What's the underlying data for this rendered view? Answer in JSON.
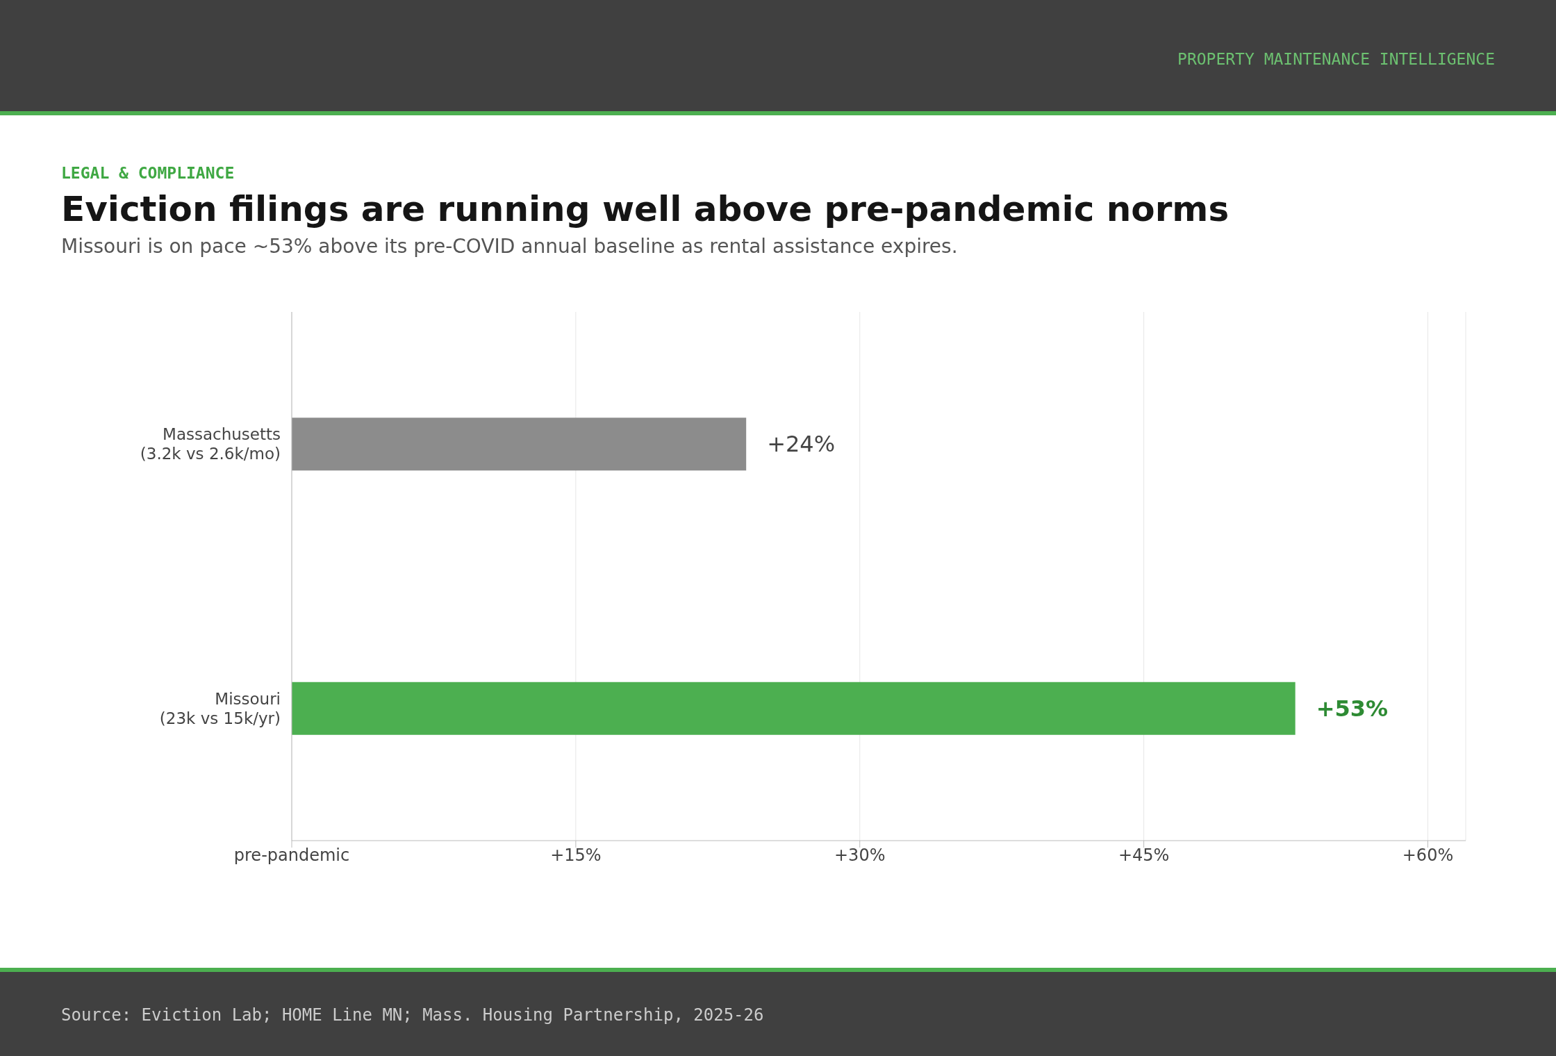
{
  "chart_data": {
    "type": "bar",
    "orientation": "horizontal",
    "title": "Eviction filings are running well above pre-pandemic norms",
    "subtitle": "Missouri is on pace ~53% above its pre-COVID annual baseline as rental assistance expires.",
    "annotations": [
      "LEGAL & COMPLIANCE",
      "PROPERTY MAINTENANCE INTELLIGENCE",
      "Source: Eviction Lab; HOME Line MN; Mass. Housing Partnership, 2025-26"
    ],
    "categories": [
      "Massachusetts\n(3.2k vs 2.6k/mo)",
      "Missouri\n(23k vs 15k/yr)"
    ],
    "values": [
      24,
      53
    ],
    "colors": [
      "#8c8c8c",
      "#4caf50"
    ],
    "value_labels": [
      "+24%",
      "+53%"
    ],
    "xlim": [
      0,
      62
    ],
    "xticks": [
      {
        "value": 0,
        "label": "pre-pandemic"
      },
      {
        "value": 15,
        "label": "+15%"
      },
      {
        "value": 30,
        "label": "+30%"
      },
      {
        "value": 45,
        "label": "+45%"
      },
      {
        "value": 60,
        "label": "+60%"
      }
    ],
    "grid": "x"
  }
}
